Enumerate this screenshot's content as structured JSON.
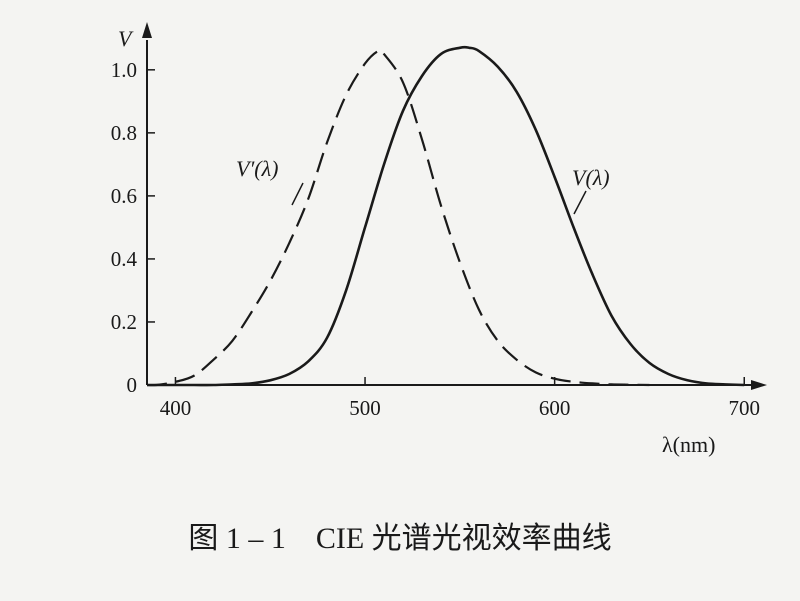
{
  "chart_data": {
    "type": "line",
    "ylabel": "V",
    "xlabel": "λ(nm)",
    "xlim": [
      385,
      712
    ],
    "ylim": [
      0,
      1.12
    ],
    "x_ticks": [
      {
        "value": 400,
        "label": "400"
      },
      {
        "value": 500,
        "label": "500"
      },
      {
        "value": 600,
        "label": "600"
      },
      {
        "value": 700,
        "label": "700"
      }
    ],
    "y_ticks": [
      {
        "value": 0,
        "label": "0"
      },
      {
        "value": 0.2,
        "label": "0.2"
      },
      {
        "value": 0.4,
        "label": "0.4"
      },
      {
        "value": 0.6,
        "label": "0.6"
      },
      {
        "value": 0.8,
        "label": "0.8"
      },
      {
        "value": 1.0,
        "label": "1.0"
      }
    ],
    "grid": false,
    "series": [
      {
        "name": "V′(λ)",
        "style": "dashed",
        "x": [
          380,
          390,
          400,
          410,
          420,
          430,
          440,
          450,
          460,
          470,
          480,
          490,
          500,
          507,
          510,
          520,
          530,
          540,
          550,
          560,
          570,
          580,
          590,
          600,
          610,
          620,
          630,
          640,
          650
        ],
        "y": [
          0.0,
          0.0,
          0.01,
          0.03,
          0.08,
          0.14,
          0.23,
          0.33,
          0.45,
          0.59,
          0.77,
          0.92,
          1.02,
          1.06,
          1.05,
          0.96,
          0.78,
          0.57,
          0.39,
          0.24,
          0.14,
          0.08,
          0.04,
          0.02,
          0.01,
          0.005,
          0.002,
          0.001,
          0.0
        ]
      },
      {
        "name": "V(λ)",
        "style": "solid",
        "x": [
          380,
          390,
          400,
          410,
          420,
          430,
          440,
          450,
          460,
          470,
          480,
          490,
          500,
          510,
          520,
          530,
          540,
          550,
          555,
          560,
          570,
          580,
          590,
          600,
          610,
          620,
          630,
          640,
          650,
          660,
          670,
          680,
          690,
          700
        ],
        "y": [
          0.0,
          0.0,
          0.0,
          0.0,
          0.0,
          0.002,
          0.005,
          0.015,
          0.035,
          0.075,
          0.15,
          0.3,
          0.5,
          0.7,
          0.87,
          0.98,
          1.05,
          1.07,
          1.07,
          1.06,
          1.01,
          0.93,
          0.81,
          0.66,
          0.5,
          0.35,
          0.22,
          0.13,
          0.07,
          0.035,
          0.015,
          0.005,
          0.002,
          0.0
        ]
      }
    ]
  },
  "caption": "图 1 – 1　CIE 光谱光视效率曲线"
}
